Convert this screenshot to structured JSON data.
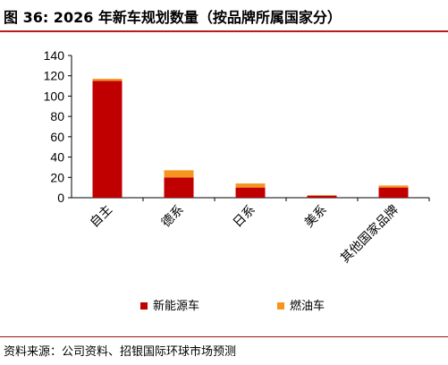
{
  "title": "图 36: 2026 年新车规划数量（按品牌所属国家分）",
  "source": "资料来源：公司资料、招银国际环球市场预测",
  "colors": {
    "ev": "#c00000",
    "ice": "#f7941d",
    "rule": "#b71c1c"
  },
  "chart_data": {
    "type": "bar",
    "stacked": true,
    "categories": [
      "自主",
      "德系",
      "日系",
      "美系",
      "其他国家品牌"
    ],
    "series": [
      {
        "name": "新能源车",
        "values": [
          115,
          20,
          10,
          2,
          10
        ]
      },
      {
        "name": "燃油车",
        "values": [
          2,
          7,
          4,
          0.5,
          2
        ]
      }
    ],
    "ylim": [
      0,
      140
    ],
    "yticks": [
      "0",
      "20",
      "40",
      "60",
      "80",
      "100",
      "120",
      "140"
    ],
    "grid": false,
    "legend": "bottom"
  }
}
